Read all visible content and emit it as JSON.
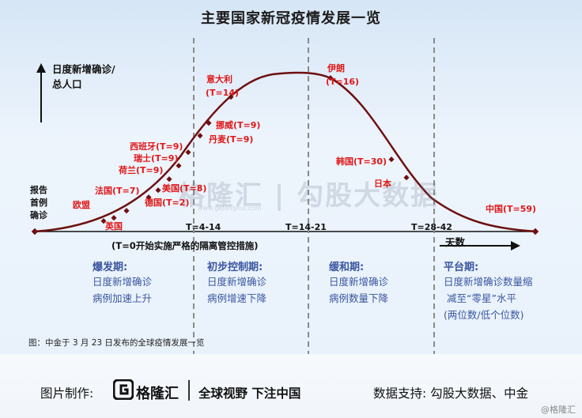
{
  "title": "主要国家新冠疫情发展一览",
  "yaxis_label_line1": "日度新增确诊/",
  "yaxis_label_line2": "总人口",
  "first_case_line1": "报告",
  "first_case_line2": "首例",
  "first_case_line3": "确诊",
  "xaxis_label": "天数",
  "measures_label": "(T=0开始实施严格的隔离管控措施)",
  "time_markers": [
    "T=4-14",
    "T=14-21",
    "T=28-42"
  ],
  "countries": [
    {
      "name": "欧盟"
    },
    {
      "name": "英国"
    },
    {
      "name": "法国(T=7)"
    },
    {
      "name": "德国(T=2)"
    },
    {
      "name": "美国(T=8)"
    },
    {
      "name": "荷兰(T=9)"
    },
    {
      "name": "瑞士(T=9)"
    },
    {
      "name": "西班牙(T=9)"
    },
    {
      "name": "丹麦(T=9)"
    },
    {
      "name": "挪威(T=9)"
    },
    {
      "name": "意大利",
      "sub": "(T=14)"
    },
    {
      "name": "伊朗",
      "sub": "(T=16)"
    },
    {
      "name": "韩国(T=30)"
    },
    {
      "name": "日本"
    },
    {
      "name": "中国(T=59)"
    }
  ],
  "phases": [
    {
      "title": "爆发期:",
      "line1": "日度新增确诊",
      "line2": "病例加速上升"
    },
    {
      "title": "初步控制期:",
      "line1": "日度新增确诊",
      "line2": "病例增速下降"
    },
    {
      "title": "缓和期:",
      "line1": "日度新增确诊",
      "line2": "病例数量下降"
    },
    {
      "title": "平台期:",
      "line1": "日度新增确诊数量缩",
      "line2": "减至“零星”水平",
      "line3": "(两位数/低个位数)"
    }
  ],
  "caption": "图：中金于 3 月 23 日发布的全球疫情发展一览",
  "watermark": "格隆汇 | 勾股大数据",
  "watermark_url": "www.gelonghui.com",
  "footer": {
    "maker_label": "图片制作:",
    "brand": "格隆汇",
    "slogan": "全球视野 下注中国",
    "support": "数据支持: 勾股大数据、中金",
    "corner": "@格隆汇"
  },
  "colors": {
    "curve": "#6e1010",
    "label_red": "#e01818",
    "phase_blue": "#3a55a0",
    "divider": "#8a8a8a"
  }
}
